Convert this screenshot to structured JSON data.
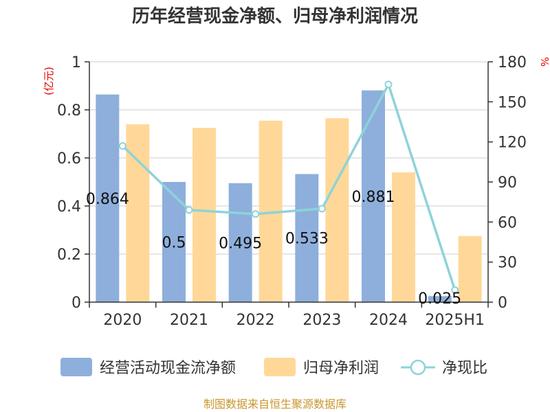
{
  "chart_data": {
    "type": "bar",
    "title": "历年经营现金净额、归母净利润情况",
    "categories": [
      "2020",
      "2021",
      "2022",
      "2023",
      "2024",
      "2025H1"
    ],
    "left_axis": {
      "unit": "(亿元)",
      "ylim": [
        0,
        1
      ],
      "ticks": [
        "0",
        "0.2",
        "0.4",
        "0.6",
        "0.8",
        "1"
      ]
    },
    "right_axis": {
      "unit": "%",
      "ylim": [
        0,
        180
      ],
      "ticks": [
        "0",
        "30",
        "60",
        "90",
        "120",
        "150",
        "180"
      ]
    },
    "series": [
      {
        "name": "经营活动现金流净额",
        "type": "bar",
        "axis": "left",
        "color": "#8eafdc",
        "values": [
          0.864,
          0.5,
          0.495,
          0.533,
          0.881,
          0.025
        ],
        "labels": [
          "0.864",
          "0.5",
          "0.495",
          "0.533",
          "0.881",
          "0.025"
        ]
      },
      {
        "name": "归母净利润",
        "type": "bar",
        "axis": "left",
        "color": "#ffd899",
        "values": [
          0.74,
          0.725,
          0.755,
          0.765,
          0.54,
          0.275
        ]
      },
      {
        "name": "净现比",
        "type": "line",
        "axis": "right",
        "color": "#8dd3d9",
        "values": [
          117,
          69,
          66,
          70,
          163,
          9
        ]
      }
    ],
    "grid": true,
    "legend": "bottom"
  },
  "source": "制图数据来自恒生聚源数据库"
}
